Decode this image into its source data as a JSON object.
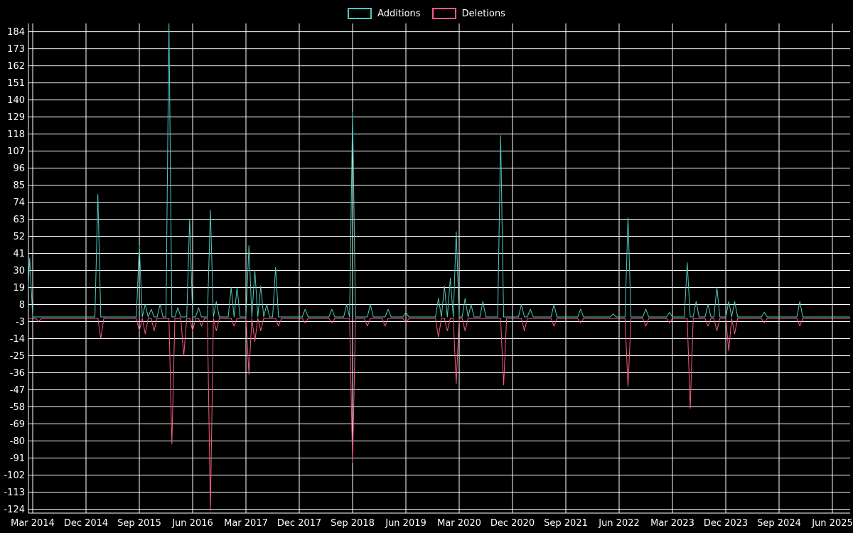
{
  "colors": {
    "background": "#000000",
    "grid": "#ffffff",
    "text": "#ffffff",
    "additions": "#4fc9bd",
    "deletions": "#f85c7f"
  },
  "chart_data": {
    "type": "line",
    "title": "",
    "legend_position": "top-center",
    "grid": true,
    "x_axis": {
      "tick_labels": [
        "Mar 2014",
        "Dec 2014",
        "Sep 2015",
        "Jun 2016",
        "Mar 2017",
        "Dec 2017",
        "Sep 2018",
        "Jun 2019",
        "Mar 2020",
        "Dec 2020",
        "Sep 2021",
        "Jun 2022",
        "Mar 2023",
        "Dec 2023",
        "Sep 2024",
        "Jun 2025"
      ],
      "months_per_tick": 9,
      "start": "Mar 2014",
      "end": "Jun 2025"
    },
    "y_axis": {
      "tick_labels": [
        184,
        173,
        162,
        151,
        140,
        129,
        118,
        107,
        96,
        85,
        74,
        63,
        52,
        41,
        30,
        19,
        8,
        -3,
        -14,
        -25,
        -36,
        -47,
        -58,
        -69,
        -80,
        -91,
        -102,
        -113,
        -124
      ],
      "min": -124,
      "max": 184,
      "step": 11
    },
    "encoding": "spikes_month_value = [months since Mar 2014, value]; series value is approximately 0 at all other times (flat baseline)",
    "series": [
      {
        "name": "Additions",
        "color": "#4fc9bd",
        "baseline": 0,
        "spikes_month_value": [
          [
            -0.5,
            38
          ],
          [
            11,
            79
          ],
          [
            18,
            46
          ],
          [
            19,
            8
          ],
          [
            20,
            5
          ],
          [
            21.5,
            8
          ],
          [
            23,
            190
          ],
          [
            24.5,
            6
          ],
          [
            26.5,
            63
          ],
          [
            28,
            6
          ],
          [
            30,
            69
          ],
          [
            31,
            10
          ],
          [
            33.5,
            19
          ],
          [
            34.5,
            19
          ],
          [
            36.5,
            46
          ],
          [
            37.5,
            30
          ],
          [
            38.5,
            20
          ],
          [
            39.5,
            8
          ],
          [
            41,
            32
          ],
          [
            46,
            5
          ],
          [
            50.5,
            5
          ],
          [
            53,
            8
          ],
          [
            54,
            132
          ],
          [
            57,
            8
          ],
          [
            60,
            5
          ],
          [
            63,
            3
          ],
          [
            68.5,
            12
          ],
          [
            69.5,
            20
          ],
          [
            70.5,
            25
          ],
          [
            71.5,
            55
          ],
          [
            73,
            12
          ],
          [
            74,
            8
          ],
          [
            76,
            10
          ],
          [
            79,
            117
          ],
          [
            82.5,
            8
          ],
          [
            84,
            5
          ],
          [
            88,
            8
          ],
          [
            92.5,
            5
          ],
          [
            98,
            2
          ],
          [
            100.5,
            64
          ],
          [
            103.5,
            5
          ],
          [
            107.5,
            3
          ],
          [
            110.5,
            35
          ],
          [
            112,
            10
          ],
          [
            114,
            8
          ],
          [
            115.5,
            19
          ],
          [
            117.5,
            10
          ],
          [
            118.5,
            10
          ],
          [
            123.5,
            3
          ],
          [
            129.5,
            10
          ]
        ]
      },
      {
        "name": "Deletions",
        "color": "#f85c7f",
        "baseline": 0,
        "spikes_month_value": [
          [
            1,
            -2
          ],
          [
            11.5,
            -13
          ],
          [
            18,
            -8
          ],
          [
            19,
            -10
          ],
          [
            20.5,
            -8
          ],
          [
            23.5,
            -81
          ],
          [
            25.5,
            -24
          ],
          [
            27,
            -8
          ],
          [
            28.5,
            -5
          ],
          [
            30,
            -124
          ],
          [
            31,
            -8
          ],
          [
            34,
            -5
          ],
          [
            36.5,
            -36
          ],
          [
            37.5,
            -15
          ],
          [
            38.5,
            -8
          ],
          [
            41.5,
            -5
          ],
          [
            46,
            -3
          ],
          [
            50.5,
            -3
          ],
          [
            54,
            -93
          ],
          [
            56.5,
            -5
          ],
          [
            59.5,
            -5
          ],
          [
            63,
            -3
          ],
          [
            68.5,
            -12
          ],
          [
            70,
            -8
          ],
          [
            71.5,
            -42
          ],
          [
            73,
            -8
          ],
          [
            79.5,
            -43
          ],
          [
            83,
            -8
          ],
          [
            88,
            -5
          ],
          [
            92.5,
            -3
          ],
          [
            100.5,
            -44
          ],
          [
            103.5,
            -5
          ],
          [
            107.5,
            -3
          ],
          [
            111,
            -58
          ],
          [
            114,
            -5
          ],
          [
            115.5,
            -8
          ],
          [
            117.5,
            -21
          ],
          [
            118.5,
            -10
          ],
          [
            123.5,
            -3
          ],
          [
            129.5,
            -5
          ]
        ]
      }
    ]
  }
}
